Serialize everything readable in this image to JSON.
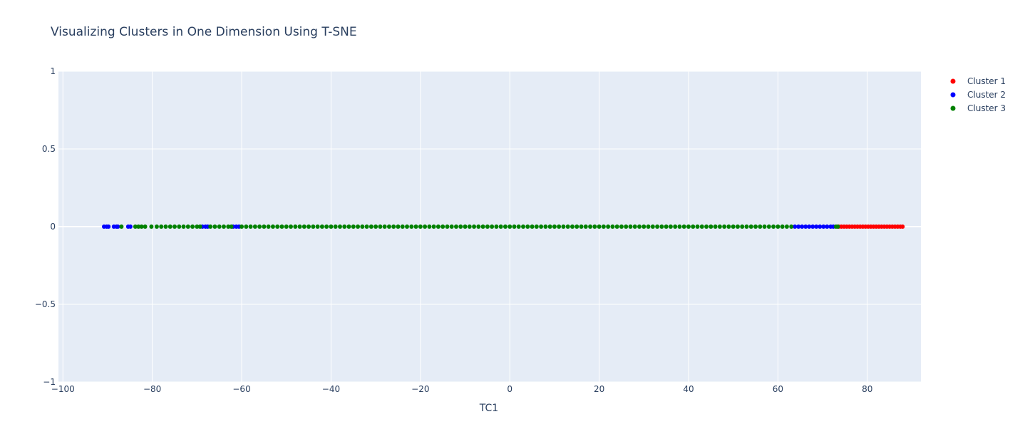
{
  "chart_data": {
    "type": "scatter",
    "title": "Visualizing Clusters in One Dimension Using T-SNE",
    "xlabel": "TC1",
    "ylabel": "",
    "xlim": [
      -101,
      92
    ],
    "ylim": [
      -1,
      1
    ],
    "x_ticks": [
      -100,
      -80,
      -60,
      -40,
      -20,
      0,
      20,
      40,
      60,
      80
    ],
    "x_tick_labels": [
      "−100",
      "−80",
      "−60",
      "−40",
      "−20",
      "0",
      "20",
      "40",
      "60",
      "80"
    ],
    "y_ticks": [
      -1,
      -0.5,
      0,
      0.5,
      1
    ],
    "y_tick_labels": [
      "−1",
      "−0.5",
      "0",
      "0.5",
      "1"
    ],
    "grid": true,
    "legend_position": "top-right",
    "series": [
      {
        "name": "Cluster 1",
        "color": "#ff0000",
        "x": [
          73.6,
          74.2,
          74.8,
          75.4,
          76.0,
          76.6,
          77.2,
          77.8,
          78.4,
          79.0,
          79.6,
          80.2,
          80.8,
          81.4,
          82.0,
          82.6,
          83.2,
          83.8,
          84.4,
          85.0,
          85.6,
          86.2,
          86.8,
          87.4,
          87.9
        ],
        "y": [
          0,
          0,
          0,
          0,
          0,
          0,
          0,
          0,
          0,
          0,
          0,
          0,
          0,
          0,
          0,
          0,
          0,
          0,
          0,
          0,
          0,
          0,
          0,
          0,
          0
        ]
      },
      {
        "name": "Cluster 2",
        "color": "#0000ff",
        "x": [
          -90.8,
          -90.2,
          -89.8,
          -88.6,
          -88.0,
          -87.7,
          -85.4,
          -84.9,
          -68.8,
          -68.1,
          -67.6,
          -61.9,
          -61.2,
          -60.6,
          63.8,
          64.6,
          65.4,
          66.2,
          67.0,
          67.8,
          68.6,
          69.4,
          70.2,
          71.0,
          71.8,
          72.4
        ],
        "y": [
          0,
          0,
          0,
          0,
          0,
          0,
          0,
          0,
          0,
          0,
          0,
          0,
          0,
          0,
          0,
          0,
          0,
          0,
          0,
          0,
          0,
          0,
          0,
          0,
          0,
          0
        ]
      },
      {
        "name": "Cluster 3",
        "color": "#008000",
        "x": [
          -86.9,
          -83.8,
          -83.1,
          -82.4,
          -81.6,
          -80.2,
          -79.0,
          -78.0,
          -77.0,
          -76.0,
          -75.0,
          -74.0,
          -73.0,
          -72.0,
          -71.0,
          -70.0,
          -69.3,
          -67.0,
          -66.0,
          -65.0,
          -64.0,
          -63.0,
          -62.3,
          -60.0,
          -59.0,
          -58.0,
          -57.0,
          -56.0,
          -55.0,
          -54.0,
          -53.0,
          -52.0,
          -51.0,
          -50.0,
          -49.0,
          -48.0,
          -47.0,
          -46.0,
          -45.0,
          -44.0,
          -43.0,
          -42.0,
          -41.0,
          -40.0,
          -39.0,
          -38.0,
          -37.0,
          -36.0,
          -35.0,
          -34.0,
          -33.0,
          -32.0,
          -31.0,
          -30.0,
          -29.0,
          -28.0,
          -27.0,
          -26.0,
          -25.0,
          -24.0,
          -23.0,
          -22.0,
          -21.0,
          -20.0,
          -19.0,
          -18.0,
          -17.0,
          -16.0,
          -15.0,
          -14.0,
          -13.0,
          -12.0,
          -11.0,
          -10.0,
          -9.0,
          -8.0,
          -7.0,
          -6.0,
          -5.0,
          -4.0,
          -3.0,
          -2.0,
          -1.0,
          0.0,
          1.0,
          2.0,
          3.0,
          4.0,
          5.0,
          6.0,
          7.0,
          8.0,
          9.0,
          10.0,
          11.0,
          12.0,
          13.0,
          14.0,
          15.0,
          16.0,
          17.0,
          18.0,
          19.0,
          20.0,
          21.0,
          22.0,
          23.0,
          24.0,
          25.0,
          26.0,
          27.0,
          28.0,
          29.0,
          30.0,
          31.0,
          32.0,
          33.0,
          34.0,
          35.0,
          36.0,
          37.0,
          38.0,
          39.0,
          40.0,
          41.0,
          42.0,
          43.0,
          44.0,
          45.0,
          46.0,
          47.0,
          48.0,
          49.0,
          50.0,
          51.0,
          52.0,
          53.0,
          54.0,
          55.0,
          56.0,
          57.0,
          58.0,
          59.0,
          60.0,
          61.0,
          62.0,
          63.0,
          73.0,
          73.4
        ],
        "y": [
          0,
          0,
          0,
          0,
          0,
          0,
          0,
          0,
          0,
          0,
          0,
          0,
          0,
          0,
          0,
          0,
          0,
          0,
          0,
          0,
          0,
          0,
          0,
          0,
          0,
          0,
          0,
          0,
          0,
          0,
          0,
          0,
          0,
          0,
          0,
          0,
          0,
          0,
          0,
          0,
          0,
          0,
          0,
          0,
          0,
          0,
          0,
          0,
          0,
          0,
          0,
          0,
          0,
          0,
          0,
          0,
          0,
          0,
          0,
          0,
          0,
          0,
          0,
          0,
          0,
          0,
          0,
          0,
          0,
          0,
          0,
          0,
          0,
          0,
          0,
          0,
          0,
          0,
          0,
          0,
          0,
          0,
          0,
          0,
          0,
          0,
          0,
          0,
          0,
          0,
          0,
          0,
          0,
          0,
          0,
          0,
          0,
          0,
          0,
          0,
          0,
          0,
          0,
          0,
          0,
          0,
          0,
          0,
          0,
          0,
          0,
          0,
          0,
          0,
          0,
          0,
          0,
          0,
          0,
          0,
          0,
          0,
          0,
          0,
          0,
          0,
          0,
          0,
          0,
          0,
          0,
          0,
          0,
          0,
          0,
          0,
          0,
          0,
          0,
          0,
          0,
          0,
          0,
          0,
          0,
          0,
          0,
          0,
          0
        ]
      }
    ]
  },
  "colors": {
    "plot_background": "#e5ecf6",
    "grid": "#ffffff",
    "text": "#2a3f5f"
  }
}
